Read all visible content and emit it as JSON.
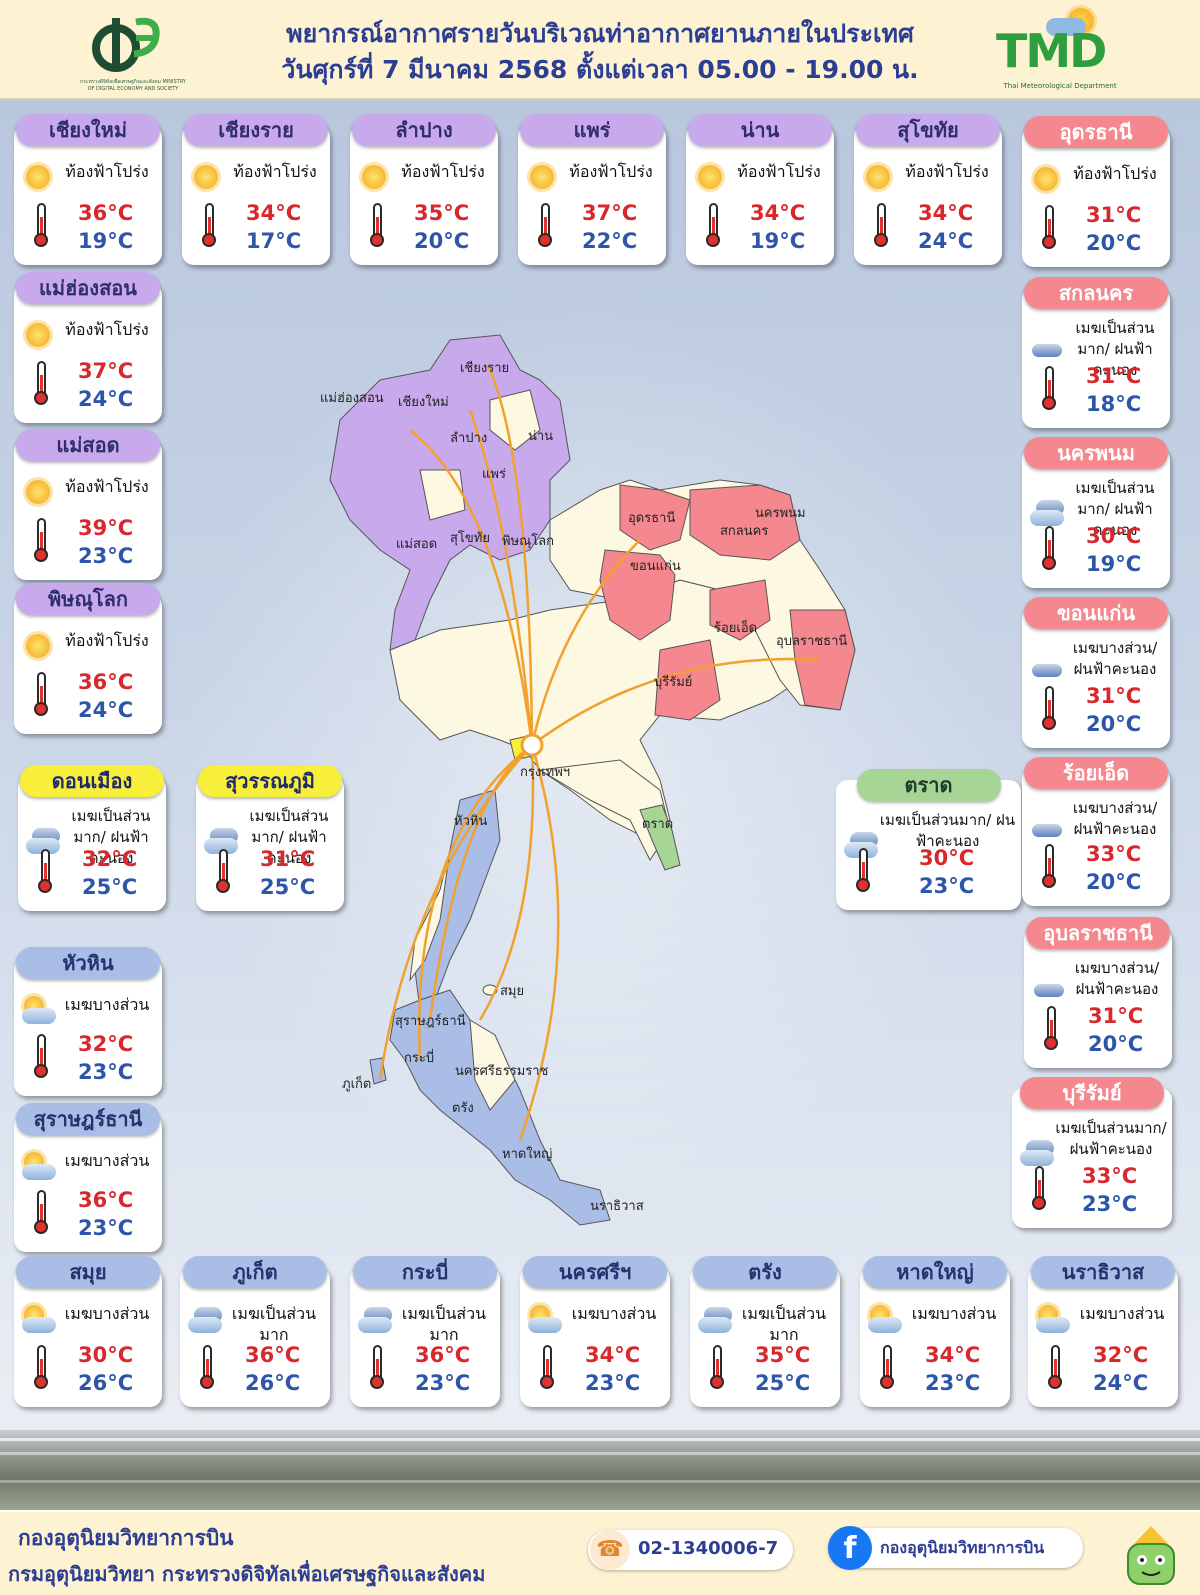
{
  "header": {
    "title_line1": "พยากรณ์อากาศรายวันบริเวณท่าอากาศยานภายในประเทศ",
    "title_line2": "วันศุกร์ที่ 7 มีนาคม 2568 ตั้งแต่เวลา 05.00 - 19.00 น.",
    "ministry_caption": "กระทรวงดิจิทัลเพื่อเศรษฐกิจและสังคม MINISTRY OF DIGITAL ECONOMY AND SOCIETY",
    "tmd_logo_text": "TMD",
    "tmd_caption": "Thai Meteorological Department"
  },
  "colors": {
    "north": "#c8a9ec",
    "northeast": "#f4888e",
    "south": "#a9bde6",
    "bangkok": "#f8ef3a",
    "east": "#a7d596",
    "high_temp": "#d8282e",
    "low_temp": "#2d56a8",
    "title": "#2c3e93"
  },
  "stations": [
    {
      "name": "เชียงใหม่",
      "condition": "ท้องฟ้าโปร่ง",
      "high": "36°C",
      "low": "19°C",
      "icon": "sun-icon",
      "region": "north"
    },
    {
      "name": "เชียงราย",
      "condition": "ท้องฟ้าโปร่ง",
      "high": "34°C",
      "low": "17°C",
      "icon": "sun-icon",
      "region": "north"
    },
    {
      "name": "ลำปาง",
      "condition": "ท้องฟ้าโปร่ง",
      "high": "35°C",
      "low": "20°C",
      "icon": "sun-icon",
      "region": "north"
    },
    {
      "name": "แพร่",
      "condition": "ท้องฟ้าโปร่ง",
      "high": "37°C",
      "low": "22°C",
      "icon": "sun-icon",
      "region": "north"
    },
    {
      "name": "น่าน",
      "condition": "ท้องฟ้าโปร่ง",
      "high": "34°C",
      "low": "19°C",
      "icon": "sun-icon",
      "region": "north"
    },
    {
      "name": "สุโขทัย",
      "condition": "ท้องฟ้าโปร่ง",
      "high": "34°C",
      "low": "24°C",
      "icon": "sun-icon",
      "region": "north"
    },
    {
      "name": "อุดรธานี",
      "condition": "ท้องฟ้าโปร่ง",
      "high": "31°C",
      "low": "20°C",
      "icon": "sun-icon",
      "region": "northeast"
    },
    {
      "name": "แม่ฮ่องสอน",
      "condition": "ท้องฟ้าโปร่ง",
      "high": "37°C",
      "low": "24°C",
      "icon": "sun-icon",
      "region": "north"
    },
    {
      "name": "สกลนคร",
      "condition": "เมฆเป็นส่วนมาก/ ฝนฟ้าคะนอง",
      "high": "31°C",
      "low": "18°C",
      "icon": "storm-cloud-icon",
      "region": "northeast"
    },
    {
      "name": "แม่สอด",
      "condition": "ท้องฟ้าโปร่ง",
      "high": "39°C",
      "low": "23°C",
      "icon": "sun-icon",
      "region": "north"
    },
    {
      "name": "นครพนม",
      "condition": "เมฆเป็นส่วนมาก/ ฝนฟ้าคะนอง",
      "high": "30°C",
      "low": "19°C",
      "icon": "cloudy-icon",
      "region": "northeast"
    },
    {
      "name": "พิษณุโลก",
      "condition": "ท้องฟ้าโปร่ง",
      "high": "36°C",
      "low": "24°C",
      "icon": "sun-icon",
      "region": "north"
    },
    {
      "name": "ขอนแก่น",
      "condition": "เมฆบางส่วน/ ฝนฟ้าคะนอง",
      "high": "31°C",
      "low": "20°C",
      "icon": "storm-cloud-icon",
      "region": "northeast"
    },
    {
      "name": "ดอนเมือง",
      "condition": "เมฆเป็นส่วนมาก/ ฝนฟ้าคะนอง",
      "high": "32°C",
      "low": "25°C",
      "icon": "cloudy-icon",
      "region": "bangkok"
    },
    {
      "name": "สุวรรณภูมิ",
      "condition": "เมฆเป็นส่วนมาก/ ฝนฟ้าคะนอง",
      "high": "31°C",
      "low": "25°C",
      "icon": "cloudy-icon",
      "region": "bangkok"
    },
    {
      "name": "ตราด",
      "condition": "เมฆเป็นส่วนมาก/ ฝนฟ้าคะนอง",
      "high": "30°C",
      "low": "23°C",
      "icon": "cloudy-icon",
      "region": "east"
    },
    {
      "name": "ร้อยเอ็ด",
      "condition": "เมฆบางส่วน/ ฝนฟ้าคะนอง",
      "high": "33°C",
      "low": "20°C",
      "icon": "storm-cloud-icon",
      "region": "northeast"
    },
    {
      "name": "อุบลราชธานี",
      "condition": "เมฆบางส่วน/ ฝนฟ้าคะนอง",
      "high": "31°C",
      "low": "20°C",
      "icon": "storm-cloud-icon",
      "region": "northeast"
    },
    {
      "name": "หัวหิน",
      "condition": "เมฆบางส่วน",
      "high": "32°C",
      "low": "23°C",
      "icon": "partly-cloudy-icon",
      "region": "south"
    },
    {
      "name": "บุรีรัมย์",
      "condition": "เมฆเป็นส่วนมาก/ ฝนฟ้าคะนอง",
      "high": "33°C",
      "low": "23°C",
      "icon": "cloudy-icon",
      "region": "northeast"
    },
    {
      "name": "สุราษฎร์ธานี",
      "condition": "เมฆบางส่วน",
      "high": "36°C",
      "low": "23°C",
      "icon": "partly-cloudy-icon",
      "region": "south"
    },
    {
      "name": "สมุย",
      "condition": "เมฆบางส่วน",
      "high": "30°C",
      "low": "26°C",
      "icon": "partly-cloudy-icon",
      "region": "south"
    },
    {
      "name": "ภูเก็ต",
      "condition": "เมฆเป็นส่วนมาก",
      "high": "36°C",
      "low": "26°C",
      "icon": "cloudy-icon",
      "region": "south"
    },
    {
      "name": "กระบี่",
      "condition": "เมฆเป็นส่วนมาก",
      "high": "36°C",
      "low": "23°C",
      "icon": "cloudy-icon",
      "region": "south"
    },
    {
      "name": "นครศรีฯ",
      "condition": "เมฆบางส่วน",
      "high": "34°C",
      "low": "23°C",
      "icon": "partly-cloudy-icon",
      "region": "south"
    },
    {
      "name": "ตรัง",
      "condition": "เมฆเป็นส่วนมาก",
      "high": "35°C",
      "low": "25°C",
      "icon": "cloudy-icon",
      "region": "south"
    },
    {
      "name": "หาดใหญ่",
      "condition": "เมฆบางส่วน",
      "high": "34°C",
      "low": "23°C",
      "icon": "partly-cloudy-icon",
      "region": "south"
    },
    {
      "name": "นราธิวาส",
      "condition": "เมฆบางส่วน",
      "high": "32°C",
      "low": "24°C",
      "icon": "partly-cloudy-icon",
      "region": "south"
    }
  ],
  "map_labels": [
    "เชียงราย",
    "แม่ฮ่องสอน",
    "เชียงใหม่",
    "ลำปาง",
    "น่าน",
    "แพร่",
    "แม่สอด",
    "สุโขทัย",
    "พิษณุโลก",
    "อุดรธานี",
    "สกลนคร",
    "นครพนม",
    "ขอนแก่น",
    "ร้อยเอ็ด",
    "อุบลราชธานี",
    "บุรีรัมย์",
    "กรุงเทพฯ",
    "ตราด",
    "หัวหิน",
    "สมุย",
    "สุราษฎร์ธานี",
    "กระบี่",
    "นครศรีธรรมราช",
    "ภูเก็ต",
    "ตรัง",
    "หาดใหญ่",
    "นราธิวาส"
  ],
  "footer": {
    "dept": "กองอุตุนิยมวิทยาการบิน",
    "ministry": "กรมอุตุนิยมวิทยา กระทรวงดิจิทัลเพื่อเศรษฐกิจและสังคม",
    "phone": "02-1340006-7",
    "facebook": "กองอุตุนิยมวิทยาการบิน"
  }
}
